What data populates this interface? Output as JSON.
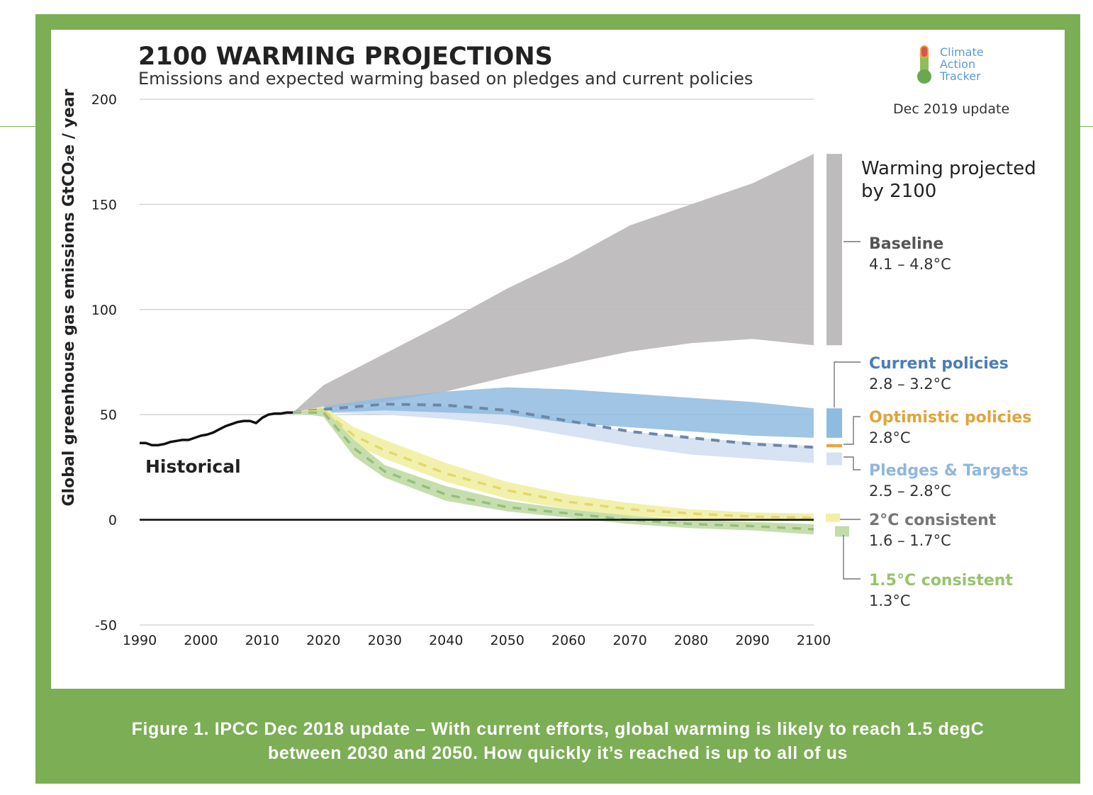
{
  "caption": {
    "line1": "Figure 1. IPCC Dec 2018 update – With current efforts, global warming is likely to reach 1.5 degC",
    "line2": "between 2030 and 2050. How quickly it’s reached is up to all of us"
  },
  "logo": {
    "line1": "Climate",
    "line2": "Action",
    "line3": "Tracker"
  },
  "update_note": "Dec 2019 update",
  "warming_heading": {
    "line1": "Warming projected",
    "line2": "by 2100"
  },
  "historical_label": "Historical",
  "colors": {
    "frame": "#7cae55",
    "baseline": "#bdbbbc",
    "current_policies": "#8fbbe0",
    "pledges_targets": "#d5e2f1",
    "two_c": "#f1f0a6",
    "one_five_c": "#c3dcaa",
    "historical": "#111111"
  },
  "chart_data": {
    "type": "area",
    "title": "2100 WARMING PROJECTIONS",
    "subtitle": "Emissions and expected warming based on pledges and current policies",
    "xlabel": "",
    "ylabel": "Global greenhouse gas emissions  GtCO₂e / year",
    "xlim": [
      1990,
      2100
    ],
    "ylim": [
      -50,
      200
    ],
    "x_ticks": [
      1990,
      2000,
      2010,
      2020,
      2030,
      2040,
      2050,
      2060,
      2070,
      2080,
      2090,
      2100
    ],
    "y_ticks": [
      200,
      150,
      100,
      50,
      0,
      -50
    ],
    "grid": true,
    "historical": {
      "name": "Historical",
      "x": [
        1990,
        1991,
        1992,
        1993,
        1994,
        1995,
        1996,
        1997,
        1998,
        1999,
        2000,
        2001,
        2002,
        2003,
        2004,
        2005,
        2006,
        2007,
        2008,
        2009,
        2010,
        2011,
        2012,
        2013,
        2014,
        2015
      ],
      "y": [
        36.5,
        36.5,
        35.5,
        35.5,
        36,
        37,
        37.5,
        38,
        38,
        39,
        40,
        40.5,
        41.5,
        43,
        44.5,
        45.5,
        46.5,
        47,
        47,
        46,
        48.5,
        50,
        50.5,
        50.5,
        51,
        51
      ]
    },
    "scenarios": [
      {
        "name": "Baseline",
        "warming": "4.1 – 4.8°C",
        "x": [
          2015,
          2020,
          2030,
          2040,
          2050,
          2060,
          2070,
          2080,
          2090,
          2100
        ],
        "lower": [
          51,
          53,
          56,
          61,
          68,
          74,
          80,
          84,
          86,
          83
        ],
        "upper": [
          51,
          64,
          79,
          94,
          110,
          124,
          140,
          150,
          160,
          174
        ]
      },
      {
        "name": "Current policies",
        "warming": "2.8 – 3.2°C",
        "x": [
          2015,
          2020,
          2030,
          2040,
          2050,
          2060,
          2070,
          2080,
          2090,
          2100
        ],
        "lower": [
          51,
          51,
          52,
          51,
          50,
          46,
          44,
          42,
          40,
          39
        ],
        "upper": [
          51,
          54,
          58,
          61,
          63,
          62,
          60,
          58,
          56,
          53
        ]
      },
      {
        "name": "Optimistic policies",
        "warming": "2.8°C",
        "x": [
          2015,
          2020,
          2030,
          2040,
          2050,
          2060,
          2070,
          2080,
          2090,
          2100
        ],
        "y": [
          51,
          52.5,
          55,
          54.5,
          52,
          47,
          42,
          39,
          36,
          34.5
        ]
      },
      {
        "name": "Pledges & Targets",
        "warming": "2.5 – 2.8°C",
        "x": [
          2015,
          2020,
          2030,
          2040,
          2050,
          2060,
          2070,
          2080,
          2090,
          2100
        ],
        "lower": [
          51,
          51,
          50,
          48,
          45,
          40,
          35,
          31,
          29,
          27
        ],
        "upper": [
          51,
          52,
          54,
          54,
          52,
          47,
          42,
          39,
          37,
          35
        ]
      },
      {
        "name": "2°C consistent",
        "warming": "1.6 – 1.7°C",
        "x": [
          2015,
          2020,
          2025,
          2030,
          2040,
          2050,
          2060,
          2070,
          2080,
          2090,
          2100
        ],
        "lower": [
          51,
          50,
          36,
          29,
          18,
          10,
          5,
          2,
          0.5,
          -0.5,
          -1
        ],
        "upper": [
          51,
          54,
          44,
          38,
          27,
          18,
          12,
          8,
          5,
          3.5,
          3
        ],
        "y": [
          51,
          52,
          40,
          33,
          22,
          14,
          8.5,
          5,
          3,
          1.5,
          1
        ]
      },
      {
        "name": "1.5°C consistent",
        "warming": "1.3°C",
        "x": [
          2015,
          2020,
          2025,
          2030,
          2040,
          2050,
          2060,
          2070,
          2080,
          2090,
          2100
        ],
        "lower": [
          51,
          49,
          30,
          20,
          9,
          4,
          1,
          -2,
          -4,
          -5,
          -7
        ],
        "upper": [
          51,
          53,
          38,
          26,
          16,
          9,
          5,
          2,
          0,
          -1,
          -2
        ],
        "y": [
          51,
          51,
          34,
          23,
          12,
          6,
          3,
          0,
          -2,
          -3,
          -4.5
        ]
      }
    ],
    "warming_bars": [
      {
        "name": "Baseline",
        "ylim": [
          83,
          174
        ]
      },
      {
        "name": "Current policies",
        "ylim": [
          39,
          53
        ]
      },
      {
        "name": "Optimistic policies",
        "ylim": [
          34.5,
          36
        ]
      },
      {
        "name": "Pledges & Targets",
        "ylim": [
          26,
          32
        ]
      },
      {
        "name": "2°C consistent",
        "ylim": [
          -1,
          3
        ]
      },
      {
        "name": "1.5°C consistent",
        "ylim": [
          -8,
          -3
        ]
      }
    ]
  }
}
